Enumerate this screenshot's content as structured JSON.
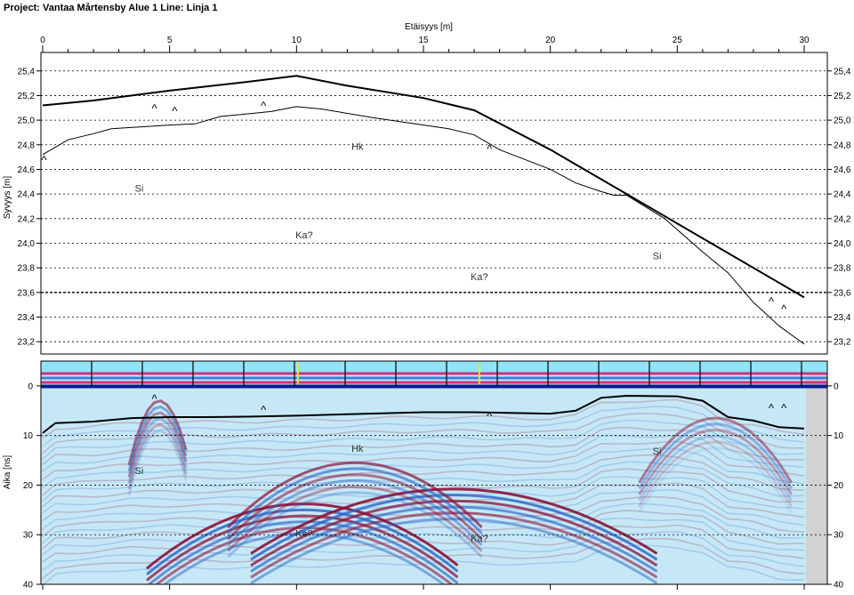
{
  "header": {
    "project_title": "Project: Vantaa Mårtensby Alue 1  Line: Linja 1"
  },
  "chart_data": [
    {
      "type": "line",
      "title": "",
      "xlabel": "Etäisyys [m]",
      "ylabel": "Syvyys [m]",
      "xlim": [
        0,
        30
      ],
      "ylim": [
        23.1,
        25.55
      ],
      "x_ticks": [
        0,
        5,
        10,
        15,
        20,
        25,
        30
      ],
      "x_tick_labels": [
        "0",
        "5",
        "10",
        "15",
        "20",
        "25",
        "30"
      ],
      "y_ticks": [
        25.4,
        25.2,
        25.0,
        24.8,
        24.6,
        24.4,
        24.2,
        24.0,
        23.8,
        23.6,
        23.4,
        23.2
      ],
      "y_tick_labels": [
        "25,4",
        "25,2",
        "25,0",
        "24,8",
        "24,6",
        "24,4",
        "24,2",
        "24,0",
        "23,8",
        "23,6",
        "23,4",
        "23,2"
      ],
      "grid": true,
      "series": [
        {
          "points": [
            [
              0,
              25.12
            ],
            [
              2,
              25.16
            ],
            [
              5,
              25.24
            ],
            [
              8,
              25.31
            ],
            [
              10,
              25.36
            ],
            [
              12,
              25.28
            ],
            [
              15,
              25.18
            ],
            [
              17,
              25.08
            ],
            [
              20,
              24.76
            ],
            [
              25,
              24.16
            ],
            [
              30,
              23.56
            ]
          ]
        },
        {
          "points": [
            [
              0,
              24.72
            ],
            [
              1,
              24.84
            ],
            [
              2,
              24.89
            ],
            [
              2.7,
              24.93
            ],
            [
              5,
              24.96
            ],
            [
              6,
              24.97
            ],
            [
              7,
              25.03
            ],
            [
              9,
              25.07
            ],
            [
              10,
              25.11
            ],
            [
              11,
              25.09
            ],
            [
              13,
              25.02
            ],
            [
              16,
              24.93
            ],
            [
              17,
              24.88
            ],
            [
              18,
              24.76
            ],
            [
              20,
              24.6
            ],
            [
              21,
              24.49
            ],
            [
              22,
              24.42
            ],
            [
              22.5,
              24.39
            ],
            [
              23,
              24.39
            ],
            [
              24.5,
              24.2
            ],
            [
              26,
              23.93
            ],
            [
              27,
              23.76
            ],
            [
              28,
              23.52
            ],
            [
              29,
              23.33
            ],
            [
              30,
              23.18
            ]
          ]
        }
      ],
      "annotations": [
        {
          "text": "Hk",
          "x": 12.4,
          "y": 24.76
        },
        {
          "text": "Si",
          "x": 3.8,
          "y": 24.42
        },
        {
          "text": "Ka?",
          "x": 10.3,
          "y": 24.04
        },
        {
          "text": "Ka?",
          "x": 17.2,
          "y": 23.7
        },
        {
          "text": "Si",
          "x": 24.2,
          "y": 23.87
        }
      ],
      "markers": [
        {
          "text": "^",
          "x": 0.05,
          "y": 24.7
        },
        {
          "text": "^",
          "x": 4.4,
          "y": 25.12
        },
        {
          "text": "^",
          "x": 5.2,
          "y": 25.1
        },
        {
          "text": "^",
          "x": 8.7,
          "y": 25.14
        },
        {
          "text": "^",
          "x": 17.6,
          "y": 24.79
        },
        {
          "text": "^",
          "x": 28.7,
          "y": 23.55
        },
        {
          "text": "^",
          "x": 29.2,
          "y": 23.49
        }
      ]
    },
    {
      "type": "heatmap",
      "title": "",
      "xlabel": "",
      "ylabel": "Aika [ns]",
      "xlim": [
        0,
        30
      ],
      "ylim": [
        40,
        -5
      ],
      "y_ticks": [
        0,
        10,
        20,
        30,
        40
      ],
      "y_tick_labels": [
        "0",
        "10",
        "20",
        "30",
        "40"
      ],
      "grid": true,
      "colors": {
        "positive": "#8a0f38",
        "negative": "#2a66c8",
        "background": "#c6e8f6"
      },
      "series": [
        {
          "points": [
            [
              0,
              9.5
            ],
            [
              0.5,
              7.5
            ],
            [
              2,
              7.2
            ],
            [
              3.5,
              6.5
            ],
            [
              5,
              6.3
            ],
            [
              6.5,
              6.3
            ],
            [
              8,
              6.2
            ],
            [
              10,
              6
            ],
            [
              12,
              5.7
            ],
            [
              15,
              5.3
            ],
            [
              17,
              5.3
            ],
            [
              20,
              5.6
            ],
            [
              21,
              5
            ],
            [
              22,
              2.4
            ],
            [
              23,
              2
            ],
            [
              25,
              2.1
            ],
            [
              26,
              3
            ],
            [
              27,
              6.3
            ],
            [
              28,
              7
            ],
            [
              29,
              8.3
            ],
            [
              30,
              8.6
            ]
          ]
        }
      ],
      "annotations": [
        {
          "text": "Hk",
          "x": 12.4,
          "y": 13.3
        },
        {
          "text": "Si",
          "x": 3.8,
          "y": 17.8
        },
        {
          "text": "Ka?",
          "x": 10.3,
          "y": 30.4
        },
        {
          "text": "Ka?",
          "x": 17.2,
          "y": 31.4
        },
        {
          "text": "Si",
          "x": 24.2,
          "y": 13.8
        }
      ],
      "markers": [
        {
          "text": "^",
          "x": 4.4,
          "y": 2
        },
        {
          "text": "^",
          "x": 8.7,
          "y": 4.2
        },
        {
          "text": "^",
          "x": 17.6,
          "y": 5.5
        },
        {
          "text": "^",
          "x": 28.7,
          "y": 3.9
        },
        {
          "text": "^",
          "x": 29.2,
          "y": 3.9
        }
      ]
    }
  ]
}
